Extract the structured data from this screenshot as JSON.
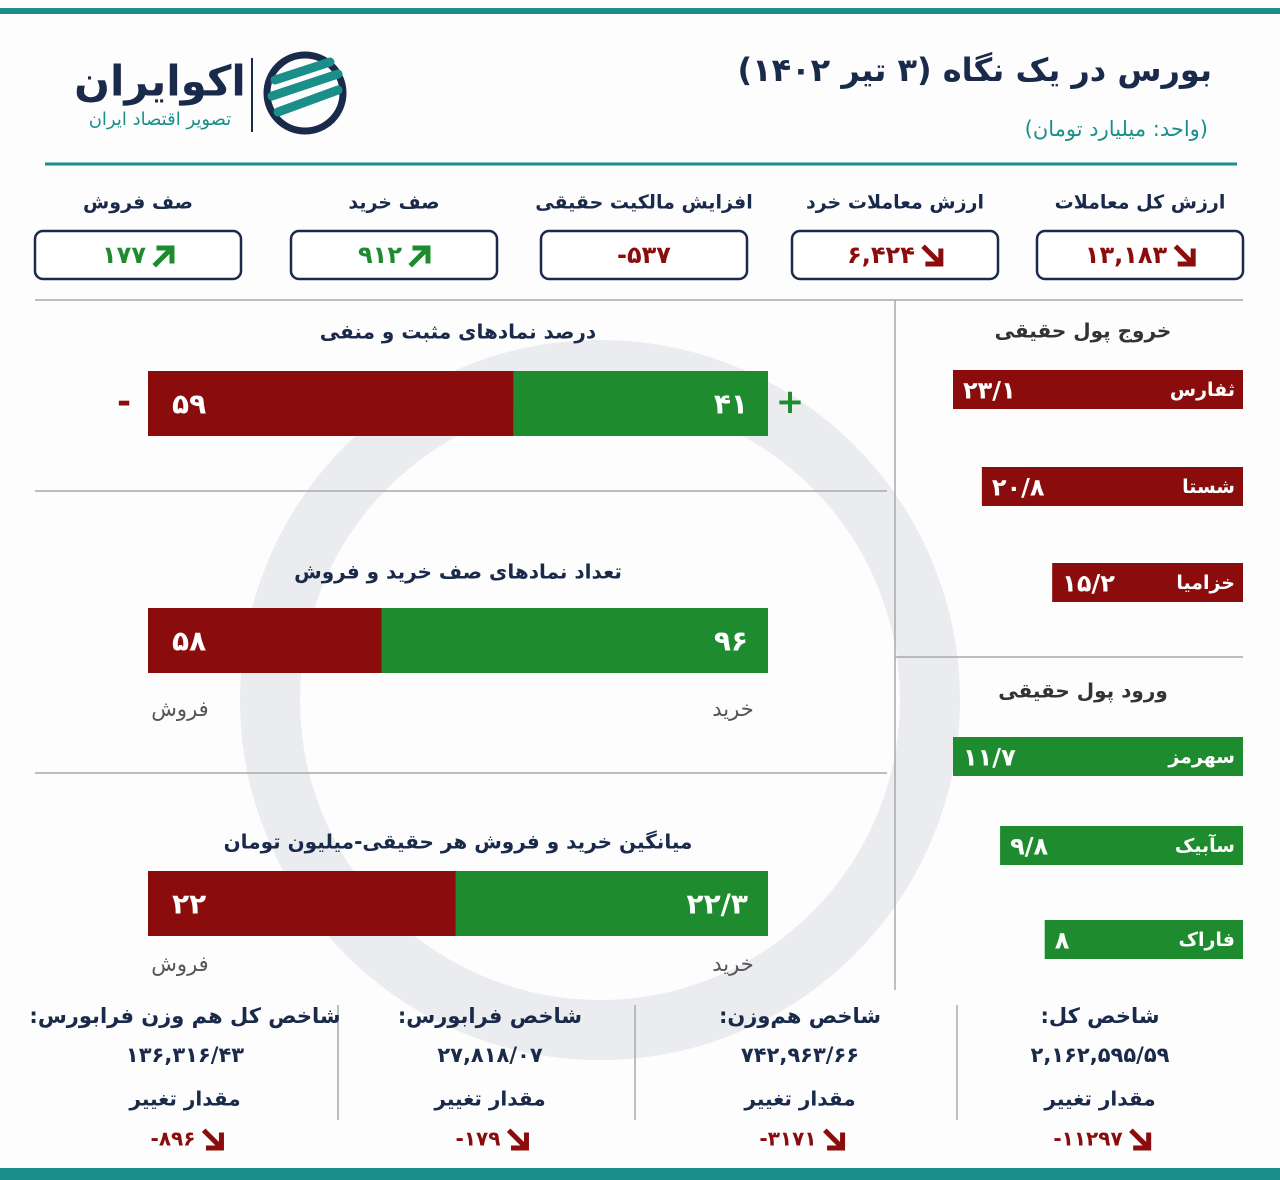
{
  "header": {
    "title": "بورس در یک نگاه (۳ تیر ۱۴۰۲)",
    "subtitle": "(واحد: میلیارد تومان)",
    "logo_name": "اکوایران",
    "logo_tagline": "تصویر اقتصاد ایران"
  },
  "stats": [
    {
      "label": "ارزش کل معاملات",
      "value": "۱۳,۱۸۳",
      "trend": "down",
      "color": "#8a0c0c"
    },
    {
      "label": "ارزش معاملات خرد",
      "value": "۶,۴۲۴",
      "trend": "down",
      "color": "#8a0c0c"
    },
    {
      "label": "افزایش مالکیت حقیقی",
      "value": "-۵۳۷",
      "trend": null,
      "color": "#8a0c0c"
    },
    {
      "label": "صف خرید",
      "value": "۹۱۲",
      "trend": "up",
      "color": "#1e8c2e"
    },
    {
      "label": "صف فروش",
      "value": "۱۷۷",
      "trend": "up",
      "color": "#1e8c2e"
    }
  ],
  "bar_panels": [
    {
      "title": "درصد نمادهای مثبت و منفی",
      "negative": {
        "value": 59,
        "label": "۵۹"
      },
      "positive": {
        "value": 41,
        "label": "۴۱"
      },
      "negative_sign": "-",
      "positive_sign": "+"
    },
    {
      "title": "تعداد نمادهای صف خرید و فروش",
      "negative": {
        "value": 58,
        "label": "۵۸"
      },
      "positive": {
        "value": 96,
        "label": "۹۶"
      },
      "negative_caption": "فروش",
      "positive_caption": "خرید"
    },
    {
      "title": "میانگین خرید و فروش هر حقیقی-میلیون تومان",
      "negative": {
        "value": 22,
        "label": "۲۲"
      },
      "positive": {
        "value": 22.3,
        "label": "۲۲/۳"
      },
      "negative_caption": "فروش",
      "positive_caption": "خرید"
    }
  ],
  "negative_color": "#8a0c0c",
  "positive_color": "#1e8c2e",
  "flows": [
    {
      "title": "خروج پول حقیقی",
      "color": "#8a0c0c",
      "items": [
        {
          "name": "ثفارس",
          "value": 23.1,
          "label": "۲۳/۱"
        },
        {
          "name": "شستا",
          "value": 20.8,
          "label": "۲۰/۸"
        },
        {
          "name": "خزامیا",
          "value": 15.2,
          "label": "۱۵/۲"
        }
      ]
    },
    {
      "title": "ورود پول حقیقی",
      "color": "#1e8c2e",
      "items": [
        {
          "name": "سهرمز",
          "value": 11.7,
          "label": "۱۱/۷"
        },
        {
          "name": "سآبیک",
          "value": 9.8,
          "label": "۹/۸"
        },
        {
          "name": "فاراک",
          "value": 8,
          "label": "۸"
        }
      ]
    }
  ],
  "indices": [
    {
      "name": "شاخص کل:",
      "value": "۲,۱۶۲,۵۹۵/۵۹",
      "change_label": "مقدار تغییر",
      "change": "-۱۱۲۹۷",
      "trend": "down"
    },
    {
      "name": "شاخص هم‌وزن:",
      "value": "۷۴۲,۹۶۳/۶۶",
      "change_label": "مقدار تغییر",
      "change": "-۳۱۷۱",
      "trend": "down"
    },
    {
      "name": "شاخص فرابورس:",
      "value": "۲۷,۸۱۸/۰۷",
      "change_label": "مقدار تغییر",
      "change": "-۱۷۹",
      "trend": "down"
    },
    {
      "name": "شاخص کل هم وزن فرابورس:",
      "value": "۱۳۶,۳۱۶/۴۳",
      "change_label": "مقدار تغییر",
      "change": "-۸۹۶",
      "trend": "down"
    }
  ]
}
